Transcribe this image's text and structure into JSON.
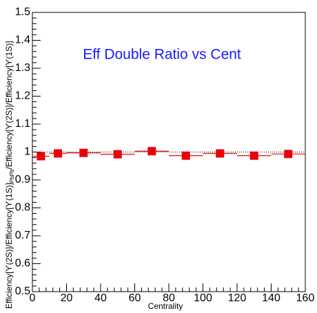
{
  "chart_data": {
    "type": "scatter",
    "title": "Eff Double Ratio vs Cent",
    "x_label": "Centrality",
    "y_label": {
      "main": "Efficiency[ϒ(2S)]/Efficiency[ϒ(1S)]",
      "sub": "PbPb",
      "rest": "/Efficiency[ϒ(2S)]/Efficiency[ϒ(1S)]"
    },
    "x": [
      5,
      15,
      30,
      50,
      70,
      90,
      110,
      130,
      150
    ],
    "xerr": [
      5,
      5,
      10,
      10,
      10,
      10,
      10,
      10,
      10
    ],
    "series": [
      {
        "color": "#e8000b",
        "values": [
          0.985,
          0.995,
          0.997,
          0.992,
          1.003,
          0.987,
          0.995,
          0.987,
          0.993
        ]
      }
    ],
    "reference_line": 1,
    "xlim": [
      0,
      160
    ],
    "xticks": [
      0,
      20,
      40,
      60,
      80,
      100,
      120,
      140,
      160
    ],
    "ylim": [
      0.5,
      1.5
    ],
    "yticks": [
      0.5,
      0.6,
      0.7,
      0.8,
      0.9,
      1,
      1.1,
      1.2,
      1.3,
      1.4,
      1.5
    ]
  }
}
